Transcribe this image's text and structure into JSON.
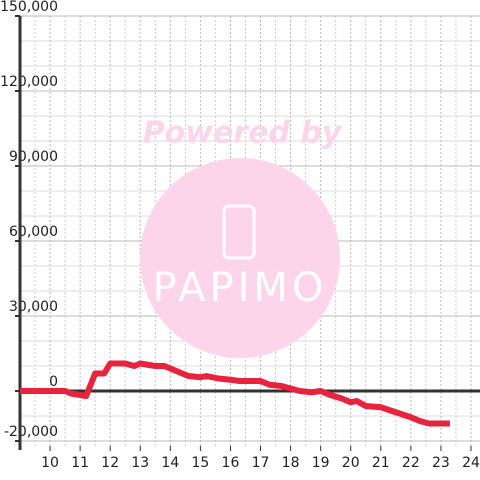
{
  "chart_data": {
    "type": "line",
    "x": [
      9,
      10.5,
      10.7,
      11.2,
      11.5,
      11.8,
      12.0,
      12.5,
      12.8,
      13.0,
      13.5,
      13.8,
      14.2,
      14.6,
      15.0,
      15.2,
      15.6,
      16.0,
      16.3,
      17.0,
      17.3,
      17.7,
      18.0,
      18.3,
      18.7,
      19.0,
      19.3,
      19.7,
      20.0,
      20.2,
      20.5,
      21.0,
      21.5,
      22.0,
      22.3,
      22.6,
      23.3
    ],
    "series": [
      {
        "color": "#e8233e",
        "values": [
          0,
          0,
          -1000,
          -2000,
          7000,
          7000,
          11000,
          11000,
          10000,
          11000,
          10000,
          10000,
          8000,
          6000,
          5500,
          6000,
          5000,
          4500,
          4000,
          4000,
          2500,
          2000,
          1000,
          0,
          -500,
          0,
          -1500,
          -3000,
          -4500,
          -4000,
          -6000,
          -6500,
          -8500,
          -10500,
          -12000,
          -13000,
          -13000
        ]
      }
    ],
    "xlim": [
      9,
      24.3
    ],
    "xticks": [
      10,
      11,
      12,
      13,
      14,
      15,
      16,
      17,
      18,
      19,
      20,
      21,
      22,
      23,
      24
    ],
    "ylim": [
      -22000,
      150000
    ],
    "yticks": [
      {
        "value": -20000,
        "label": "-20,000"
      },
      0,
      {
        "value": 30000,
        "label": "30,000"
      },
      {
        "value": 60000,
        "label": "60,000"
      },
      {
        "value": 90000,
        "label": "90,000"
      },
      {
        "value": 120000,
        "label": "120,000"
      },
      {
        "value": 150000,
        "label": "150,000"
      }
    ],
    "grid": true,
    "watermark": [
      "Powered by",
      "PAPIMO"
    ]
  }
}
